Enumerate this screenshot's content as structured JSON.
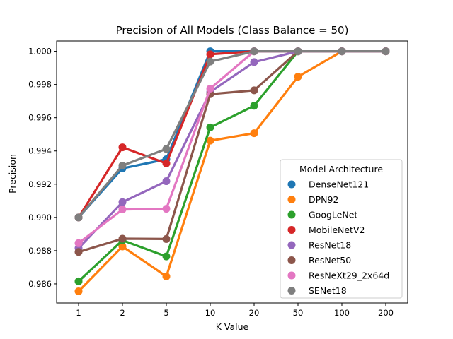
{
  "chart_data": {
    "type": "line",
    "title": "Precision of All Models (Class Balance = 50)",
    "xlabel": "K Value",
    "ylabel": "Precision",
    "categories": [
      "1",
      "2",
      "5",
      "10",
      "20",
      "50",
      "100",
      "200"
    ],
    "ylim": [
      0.98485,
      1.00062
    ],
    "yticks": [
      "0.986",
      "0.988",
      "0.990",
      "0.992",
      "0.994",
      "0.996",
      "0.998",
      "1.000"
    ],
    "grid": false,
    "legend": {
      "title": "Model Architecture",
      "placement": "lower right"
    },
    "series": [
      {
        "name": "DenseNet121",
        "color": "#1f77b4",
        "values": [
          0.99,
          0.99295,
          0.9935,
          1.0,
          1.0,
          1.0,
          1.0,
          1.0
        ]
      },
      {
        "name": "DPN92",
        "color": "#ff7f0e",
        "values": [
          0.98555,
          0.98825,
          0.98645,
          0.99462,
          0.99507,
          0.99847,
          1.0,
          1.0
        ]
      },
      {
        "name": "GoogLeNet",
        "color": "#2ca02c",
        "values": [
          0.98615,
          0.98862,
          0.98765,
          0.99542,
          0.99672,
          1.0,
          1.0,
          1.0
        ]
      },
      {
        "name": "MobileNetV2",
        "color": "#d62728",
        "values": [
          0.99,
          0.99422,
          0.99325,
          0.99982,
          1.0,
          1.0,
          1.0,
          1.0
        ]
      },
      {
        "name": "ResNet18",
        "color": "#9467bd",
        "values": [
          0.98815,
          0.99092,
          0.99218,
          0.99755,
          0.99935,
          1.0,
          1.0,
          1.0
        ]
      },
      {
        "name": "ResNet50",
        "color": "#8c564b",
        "values": [
          0.98792,
          0.98872,
          0.9887,
          0.99742,
          0.99765,
          1.0,
          1.0,
          1.0
        ]
      },
      {
        "name": "ResNeXt29_2x64d",
        "color": "#e377c2",
        "values": [
          0.98845,
          0.99048,
          0.99052,
          0.99775,
          1.0,
          1.0,
          1.0,
          1.0
        ]
      },
      {
        "name": "SENet18",
        "color": "#7f7f7f",
        "values": [
          0.99,
          0.99312,
          0.99412,
          0.99938,
          1.0,
          1.0,
          1.0,
          1.0
        ]
      }
    ]
  }
}
